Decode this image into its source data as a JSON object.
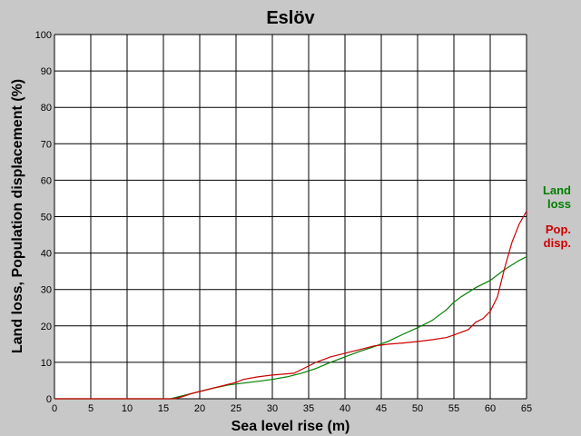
{
  "chart_data": {
    "type": "line",
    "title": "Eslöv",
    "xlabel": "Sea level rise (m)",
    "ylabel": "Land loss, Population displacement (%)",
    "xlim": [
      0,
      65
    ],
    "ylim": [
      0,
      100
    ],
    "x_ticks": [
      0,
      5,
      10,
      15,
      20,
      25,
      30,
      35,
      40,
      45,
      50,
      55,
      60,
      65
    ],
    "y_ticks": [
      0,
      10,
      20,
      30,
      40,
      50,
      60,
      70,
      80,
      90,
      100
    ],
    "grid": true,
    "legend_placement": "right",
    "series": [
      {
        "name_lines": [
          "Land",
          "loss"
        ],
        "color": "#008000",
        "points": [
          [
            0,
            0
          ],
          [
            16,
            0
          ],
          [
            17,
            0.5
          ],
          [
            18,
            1
          ],
          [
            20,
            2
          ],
          [
            22,
            3
          ],
          [
            24,
            3.8
          ],
          [
            26,
            4.3
          ],
          [
            28,
            4.8
          ],
          [
            30,
            5.3
          ],
          [
            32,
            6
          ],
          [
            34,
            7
          ],
          [
            36,
            8.3
          ],
          [
            38,
            10
          ],
          [
            40,
            11.5
          ],
          [
            42,
            13
          ],
          [
            44,
            14.3
          ],
          [
            46,
            15.8
          ],
          [
            48,
            17.7
          ],
          [
            50,
            19.5
          ],
          [
            52,
            21.5
          ],
          [
            54,
            24.5
          ],
          [
            55,
            26.5
          ],
          [
            56,
            28
          ],
          [
            58,
            30.5
          ],
          [
            60,
            32.5
          ],
          [
            62,
            35.5
          ],
          [
            64,
            38
          ],
          [
            65,
            39
          ]
        ]
      },
      {
        "name_lines": [
          "Pop.",
          "disp."
        ],
        "color": "#cc0000",
        "points": [
          [
            0,
            0
          ],
          [
            16.5,
            0
          ],
          [
            17.5,
            0.5
          ],
          [
            19,
            1.5
          ],
          [
            21,
            2.5
          ],
          [
            23,
            3.5
          ],
          [
            25,
            4.5
          ],
          [
            26,
            5.3
          ],
          [
            28,
            6
          ],
          [
            30,
            6.5
          ],
          [
            33,
            7
          ],
          [
            34,
            8
          ],
          [
            36,
            10
          ],
          [
            38,
            11.5
          ],
          [
            40,
            12.5
          ],
          [
            42,
            13.5
          ],
          [
            44,
            14.5
          ],
          [
            46,
            15
          ],
          [
            48,
            15.3
          ],
          [
            50,
            15.7
          ],
          [
            52,
            16.2
          ],
          [
            54,
            16.8
          ],
          [
            55,
            17.5
          ],
          [
            57,
            19
          ],
          [
            58,
            21
          ],
          [
            59,
            22
          ],
          [
            60,
            24
          ],
          [
            61,
            28
          ],
          [
            62,
            36
          ],
          [
            63,
            43
          ],
          [
            64,
            48
          ],
          [
            65,
            51.5
          ]
        ]
      }
    ]
  }
}
